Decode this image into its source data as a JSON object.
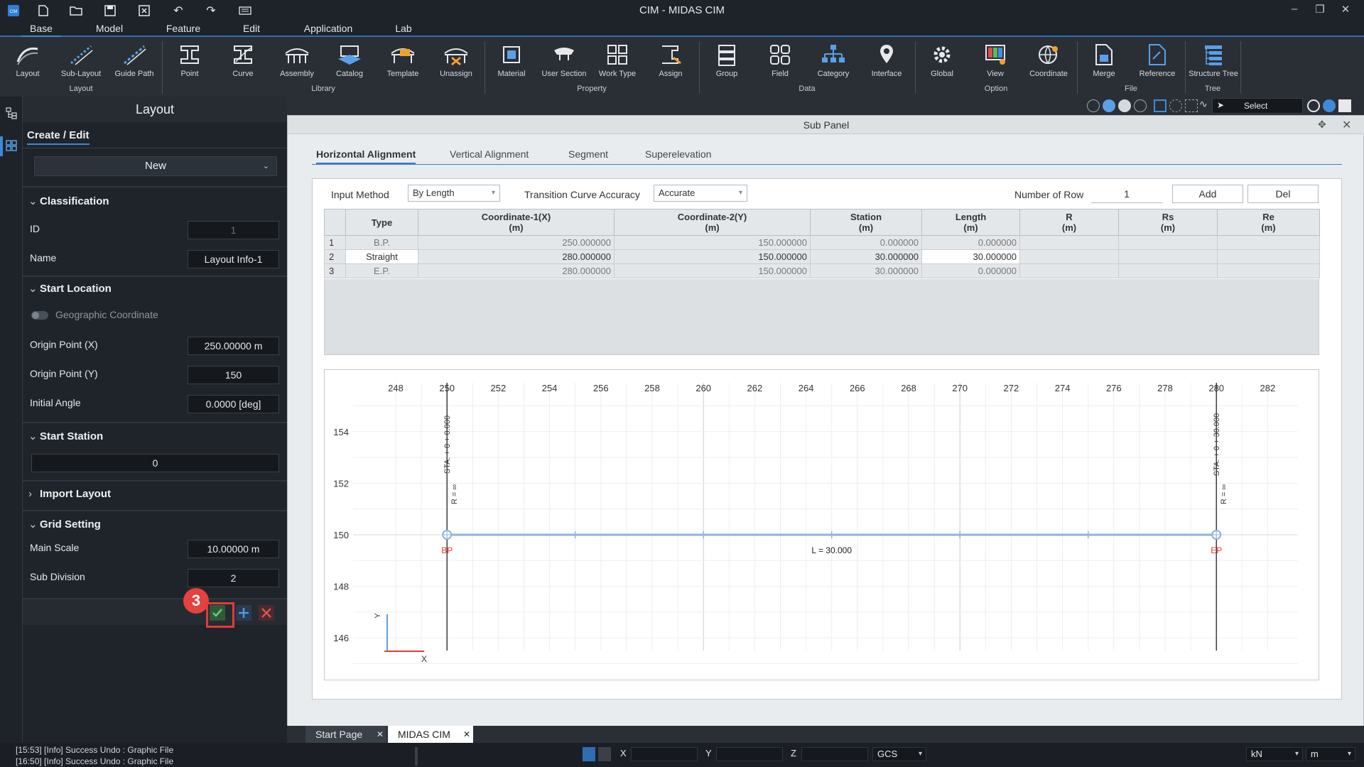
{
  "app": {
    "title": "CIM - MIDAS CIM"
  },
  "menu": {
    "tabs": [
      "Base",
      "Model",
      "Feature",
      "Edit",
      "Application",
      "Lab"
    ],
    "active": "Base"
  },
  "ribbon": {
    "buttons": [
      "Layout",
      "Sub-Layout",
      "Guide Path",
      "Point",
      "Curve",
      "Assembly",
      "Catalog",
      "Template",
      "Unassign",
      "Material",
      "User Section",
      "Work Type",
      "Assign",
      "Group",
      "Field",
      "Category",
      "Interface",
      "Global",
      "View",
      "Coordinate",
      "Merge",
      "Reference",
      "Structure Tree"
    ],
    "groups": [
      "Layout",
      "Library",
      "Property",
      "Data",
      "Option",
      "File",
      "Tree"
    ]
  },
  "toolstrip": {
    "select_label": "Select"
  },
  "left_panel": {
    "title": "Layout",
    "tab": "Create / Edit",
    "mode": "New",
    "classification": {
      "title": "Classification",
      "id_label": "ID",
      "id_value": "1",
      "name_label": "Name",
      "name_value": "Layout Info-1"
    },
    "start_location": {
      "title": "Start Location",
      "geo_label": "Geographic Coordinate",
      "origin_x_label": "Origin Point (X)",
      "origin_x_value": "250.00000 m",
      "origin_y_label": "Origin Point (Y)",
      "origin_y_value": "150",
      "angle_label": "Initial Angle",
      "angle_value": "0.0000 [deg]"
    },
    "start_station": {
      "title": "Start Station",
      "value": "0"
    },
    "import_layout": {
      "title": "Import Layout"
    },
    "grid_setting": {
      "title": "Grid Setting",
      "main_scale_label": "Main Scale",
      "main_scale_value": "10.00000 m",
      "sub_div_label": "Sub Division",
      "sub_div_value": "2"
    },
    "step_badge": "3"
  },
  "sub_panel": {
    "title": "Sub Panel",
    "tabs": [
      "Horizontal Alignment",
      "Vertical Alignment",
      "Segment",
      "Superelevation"
    ],
    "input_method_label": "Input Method",
    "input_method_value": "By Length",
    "accuracy_label": "Transition Curve Accuracy",
    "accuracy_value": "Accurate",
    "rows_label": "Number of Row",
    "rows_value": "1",
    "add_label": "Add",
    "del_label": "Del",
    "table": {
      "headers": [
        {
          "name": "Type",
          "unit": ""
        },
        {
          "name": "Coordinate-1(X)",
          "unit": "(m)"
        },
        {
          "name": "Coordinate-2(Y)",
          "unit": "(m)"
        },
        {
          "name": "Station",
          "unit": "(m)"
        },
        {
          "name": "Length",
          "unit": "(m)"
        },
        {
          "name": "R",
          "unit": "(m)"
        },
        {
          "name": "Rs",
          "unit": "(m)"
        },
        {
          "name": "Re",
          "unit": "(m)"
        }
      ],
      "rows": [
        {
          "n": "1",
          "type": "B.P.",
          "x": "250.000000",
          "y": "150.000000",
          "station": "0.000000",
          "length": "0.000000",
          "r": "",
          "rs": "",
          "re": ""
        },
        {
          "n": "2",
          "type": "Straight",
          "x": "280.000000",
          "y": "150.000000",
          "station": "30.000000",
          "length": "30.000000",
          "r": "",
          "rs": "",
          "re": ""
        },
        {
          "n": "3",
          "type": "E.P.",
          "x": "280.000000",
          "y": "150.000000",
          "station": "30.000000",
          "length": "0.000000",
          "r": "",
          "rs": "",
          "re": ""
        }
      ]
    },
    "plot": {
      "x_ticks": [
        "248",
        "250",
        "252",
        "254",
        "256",
        "258",
        "260",
        "262",
        "264",
        "266",
        "268",
        "270",
        "272",
        "274",
        "276",
        "278",
        "280",
        "282"
      ],
      "y_ticks": [
        "154",
        "152",
        "150",
        "148",
        "146"
      ],
      "start_station_label": "STA. + 0 + 0.000",
      "end_station_label": "STA. + 0 + 30.000",
      "radius_label": "R = ∞",
      "bp_label": "BP",
      "ep_label": "EP",
      "length_label": "L = 30.000",
      "axis_x": "X",
      "axis_y": "Y",
      "line": {
        "x1": 250,
        "y1": 150,
        "x2": 280,
        "y2": 150
      },
      "line_color": "#8fb2e0",
      "marker_color": "#e23b3b"
    }
  },
  "doc_tabs": [
    "Start Page",
    "MIDAS CIM"
  ],
  "status": {
    "log": [
      "[15:53] [Info] Success Undo : Graphic File",
      "[16:50] [Info] Success Undo : Graphic File"
    ],
    "x_label": "X",
    "y_label": "Y",
    "z_label": "Z",
    "coord_sys": "GCS",
    "force_unit": "kN",
    "length_unit": "m"
  }
}
